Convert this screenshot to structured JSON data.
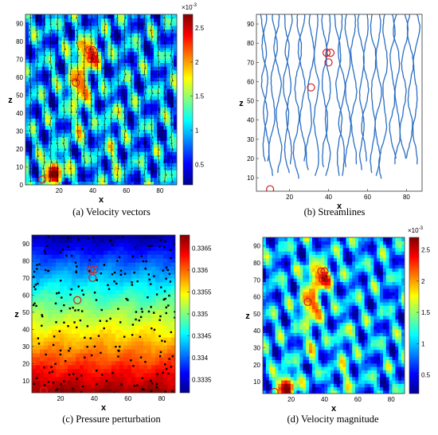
{
  "chart_data": [
    {
      "id": "a",
      "type": "heatmap",
      "overlay": "quiver",
      "caption": "(a) Velocity vectors",
      "xlabel": "x",
      "ylabel": "z",
      "xlim": [
        0,
        90
      ],
      "ylim": [
        0,
        95
      ],
      "xticks": [
        20,
        40,
        60,
        80
      ],
      "yticks": [
        0,
        10,
        20,
        30,
        40,
        50,
        60,
        70,
        80,
        90
      ],
      "colorbar": {
        "exponent": "×10",
        "exponent_power": "-3",
        "ticks": [
          0.5,
          1,
          1.5,
          2,
          2.5
        ],
        "range": [
          0.2,
          2.7
        ],
        "colormap": "jet"
      },
      "hotspots": [
        {
          "x": 17,
          "z": 8,
          "value": 2.6
        },
        {
          "x": 38,
          "z": 73,
          "value": 2.5
        },
        {
          "x": 32,
          "z": 55,
          "value": 2.0
        }
      ],
      "markers": [
        {
          "x": 10,
          "z": 3
        },
        {
          "x": 30,
          "z": 57
        },
        {
          "x": 38,
          "z": 75
        },
        {
          "x": 40,
          "z": 75
        },
        {
          "x": 39,
          "z": 70
        }
      ]
    },
    {
      "id": "b",
      "type": "line",
      "overlay": "streamlines",
      "caption": "(b) Streamlines",
      "xlabel": "x",
      "ylabel": "z",
      "xlim": [
        3,
        88
      ],
      "ylim": [
        3,
        95
      ],
      "xticks": [
        20,
        40,
        60,
        80
      ],
      "yticks": [
        10,
        20,
        30,
        40,
        50,
        60,
        70,
        80,
        90
      ],
      "line_color": "#2a6fc4",
      "markers": [
        {
          "x": 10,
          "z": 4
        },
        {
          "x": 31,
          "z": 57
        },
        {
          "x": 39,
          "z": 75
        },
        {
          "x": 41,
          "z": 75
        },
        {
          "x": 40,
          "z": 70
        }
      ]
    },
    {
      "id": "c",
      "type": "heatmap",
      "caption": "(c) Pressure perturbation",
      "xlabel": "x",
      "ylabel": "z",
      "xlim": [
        3,
        88
      ],
      "ylim": [
        3,
        95
      ],
      "xticks": [
        20,
        40,
        60,
        80
      ],
      "yticks": [
        10,
        20,
        30,
        40,
        50,
        60,
        70,
        80,
        90
      ],
      "colorbar": {
        "ticks": [
          "0.3335",
          "0.334",
          "0.3345",
          "0.335",
          "0.3355",
          "0.336",
          "0.3365"
        ],
        "range": [
          0.3332,
          0.3368
        ],
        "colormap": "jet"
      },
      "gradient": {
        "top_value": 0.3333,
        "bottom_value": 0.3367
      },
      "markers": [
        {
          "x": 10,
          "z": 4
        },
        {
          "x": 30,
          "z": 57
        },
        {
          "x": 38,
          "z": 75
        },
        {
          "x": 40,
          "z": 75
        },
        {
          "x": 39,
          "z": 70
        }
      ]
    },
    {
      "id": "d",
      "type": "heatmap",
      "caption": "(d) Velocity magnitude",
      "xlabel": "x",
      "ylabel": "z",
      "xlim": [
        3,
        88
      ],
      "ylim": [
        3,
        95
      ],
      "xticks": [
        20,
        40,
        60,
        80
      ],
      "yticks": [
        10,
        20,
        30,
        40,
        50,
        60,
        70,
        80,
        90
      ],
      "colorbar": {
        "exponent": "×10",
        "exponent_power": "-3",
        "ticks": [
          0.5,
          1,
          1.5,
          2,
          2.5
        ],
        "range": [
          0.2,
          2.7
        ],
        "colormap": "jet"
      },
      "hotspots": [
        {
          "x": 17,
          "z": 8,
          "value": 2.6
        },
        {
          "x": 38,
          "z": 72,
          "value": 2.5
        },
        {
          "x": 32,
          "z": 55,
          "value": 2.0
        }
      ],
      "markers": [
        {
          "x": 10,
          "z": 4
        },
        {
          "x": 30,
          "z": 57
        },
        {
          "x": 38,
          "z": 75
        },
        {
          "x": 40,
          "z": 75
        },
        {
          "x": 39,
          "z": 70
        }
      ]
    }
  ]
}
